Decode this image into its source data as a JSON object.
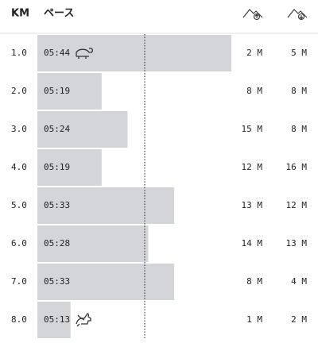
{
  "header": {
    "km": "KM",
    "pace": "ペース"
  },
  "rows": [
    {
      "km": "1.0",
      "pace": "05:44",
      "gain": "2 M",
      "loss": "5 M"
    },
    {
      "km": "2.0",
      "pace": "05:19",
      "gain": "8 M",
      "loss": "8 M"
    },
    {
      "km": "3.0",
      "pace": "05:24",
      "gain": "15 M",
      "loss": "8 M"
    },
    {
      "km": "4.0",
      "pace": "05:19",
      "gain": "12 M",
      "loss": "16 M"
    },
    {
      "km": "5.0",
      "pace": "05:33",
      "gain": "13 M",
      "loss": "12 M"
    },
    {
      "km": "6.0",
      "pace": "05:28",
      "gain": "14 M",
      "loss": "13 M"
    },
    {
      "km": "7.0",
      "pace": "05:33",
      "gain": "8 M",
      "loss": "4 M"
    },
    {
      "km": "8.0",
      "pace": "05:13",
      "gain": "1 M",
      "loss": "2 M"
    }
  ]
}
